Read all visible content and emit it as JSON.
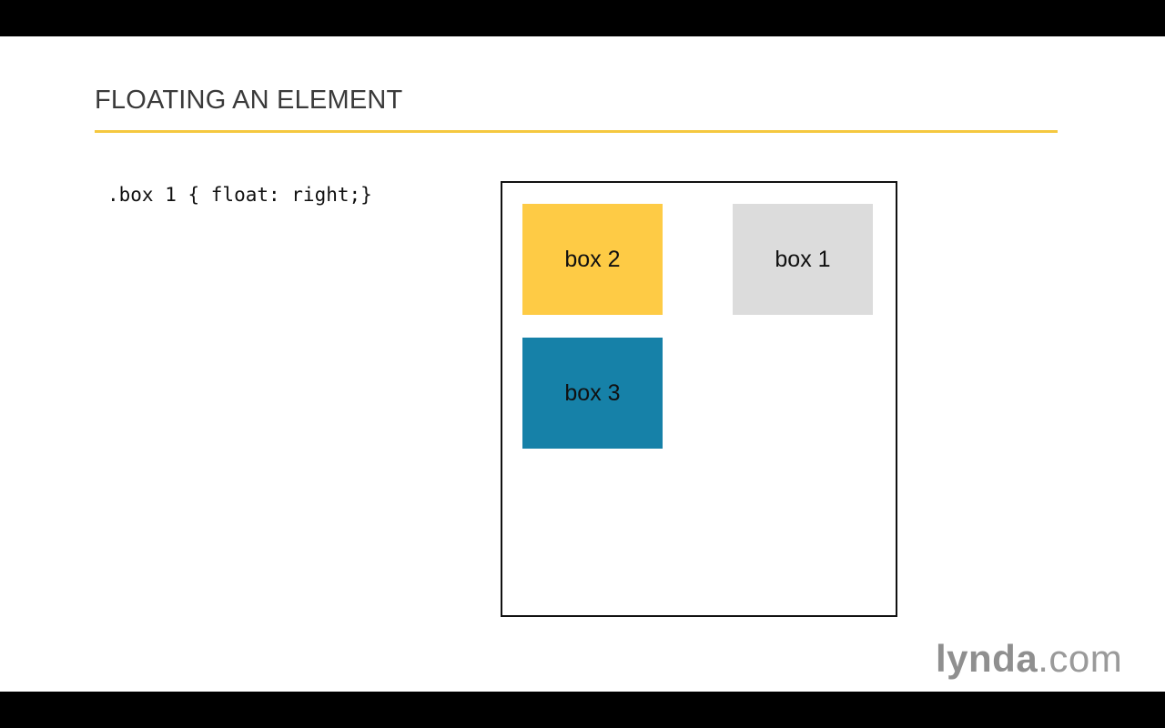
{
  "slide": {
    "title": "FLOATING AN ELEMENT",
    "accent_color": "#f5c83f",
    "code": ".box 1 { float: right;}"
  },
  "demo": {
    "boxes": [
      {
        "id": "box2",
        "label": "box 2",
        "color": "#fecb45"
      },
      {
        "id": "box1",
        "label": "box 1",
        "color": "#dcdcdc"
      },
      {
        "id": "box3",
        "label": "box 3",
        "color": "#1681a8"
      }
    ]
  },
  "logo": {
    "brand": "lynda",
    "suffix": ".com"
  }
}
